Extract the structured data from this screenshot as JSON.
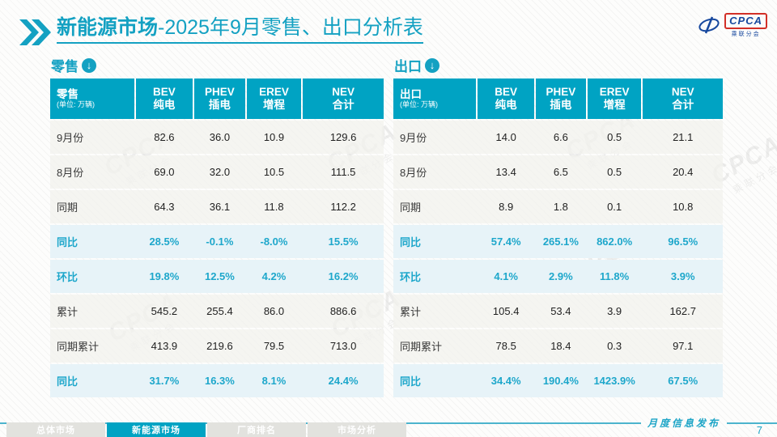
{
  "colors": {
    "accent": "#00a3c3",
    "title_teal": "#14a1c2",
    "highlight_text": "#1ea7cb",
    "highlight_row_bg": "#e7f3f8",
    "logo_blue": "#17489e",
    "logo_red": "#d22f27"
  },
  "header": {
    "title_bold": "新能源市场",
    "title_rest": "-2025年9月零售、出口分析表"
  },
  "logo": {
    "brand": "CPCA",
    "sub": "乘联分会"
  },
  "watermark": {
    "brand": "CPCA",
    "sub": "乘联分会"
  },
  "icons": {
    "section_arrow": "↓"
  },
  "tables": [
    {
      "section_label": "零售",
      "header": {
        "label": "零售",
        "unit": "(单位: 万辆)",
        "cols": [
          [
            "BEV",
            "纯电"
          ],
          [
            "PHEV",
            "插电"
          ],
          [
            "EREV",
            "增程"
          ],
          [
            "NEV",
            "合计"
          ]
        ]
      },
      "rows": [
        {
          "label": "9月份",
          "type": "normal",
          "values": [
            "82.6",
            "36.0",
            "10.9",
            "129.6"
          ]
        },
        {
          "label": "8月份",
          "type": "normal",
          "values": [
            "69.0",
            "32.0",
            "10.5",
            "111.5"
          ]
        },
        {
          "label": "同期",
          "type": "normal",
          "values": [
            "64.3",
            "36.1",
            "11.8",
            "112.2"
          ]
        },
        {
          "label": "同比",
          "type": "highlight",
          "values": [
            "28.5%",
            "-0.1%",
            "-8.0%",
            "15.5%"
          ]
        },
        {
          "label": "环比",
          "type": "highlight",
          "values": [
            "19.8%",
            "12.5%",
            "4.2%",
            "16.2%"
          ]
        },
        {
          "label": "累计",
          "type": "normal",
          "values": [
            "545.2",
            "255.4",
            "86.0",
            "886.6"
          ]
        },
        {
          "label": "同期累计",
          "type": "normal",
          "values": [
            "413.9",
            "219.6",
            "79.5",
            "713.0"
          ]
        },
        {
          "label": "同比",
          "type": "highlight",
          "values": [
            "31.7%",
            "16.3%",
            "8.1%",
            "24.4%"
          ]
        }
      ]
    },
    {
      "section_label": "出口",
      "header": {
        "label": "出口",
        "unit": "(单位: 万辆)",
        "cols": [
          [
            "BEV",
            "纯电"
          ],
          [
            "PHEV",
            "插电"
          ],
          [
            "EREV",
            "增程"
          ],
          [
            "NEV",
            "合计"
          ]
        ]
      },
      "rows": [
        {
          "label": "9月份",
          "type": "normal",
          "values": [
            "14.0",
            "6.6",
            "0.5",
            "21.1"
          ]
        },
        {
          "label": "8月份",
          "type": "normal",
          "values": [
            "13.4",
            "6.5",
            "0.5",
            "20.4"
          ]
        },
        {
          "label": "同期",
          "type": "normal",
          "values": [
            "8.9",
            "1.8",
            "0.1",
            "10.8"
          ]
        },
        {
          "label": "同比",
          "type": "highlight",
          "values": [
            "57.4%",
            "265.1%",
            "862.0%",
            "96.5%"
          ]
        },
        {
          "label": "环比",
          "type": "highlight",
          "values": [
            "4.1%",
            "2.9%",
            "11.8%",
            "3.9%"
          ]
        },
        {
          "label": "累计",
          "type": "normal",
          "values": [
            "105.4",
            "53.4",
            "3.9",
            "162.7"
          ]
        },
        {
          "label": "同期累计",
          "type": "normal",
          "values": [
            "78.5",
            "18.4",
            "0.3",
            "97.1"
          ]
        },
        {
          "label": "同比",
          "type": "highlight",
          "values": [
            "34.4%",
            "190.4%",
            "1423.9%",
            "67.5%"
          ]
        }
      ]
    }
  ],
  "footer": {
    "tabs": [
      {
        "label": "总体市场",
        "active": false
      },
      {
        "label": "新能源市场",
        "active": true
      },
      {
        "label": "厂商排名",
        "active": false
      },
      {
        "label": "市场分析",
        "active": false
      }
    ],
    "note": "月度信息发布",
    "page": "7"
  }
}
